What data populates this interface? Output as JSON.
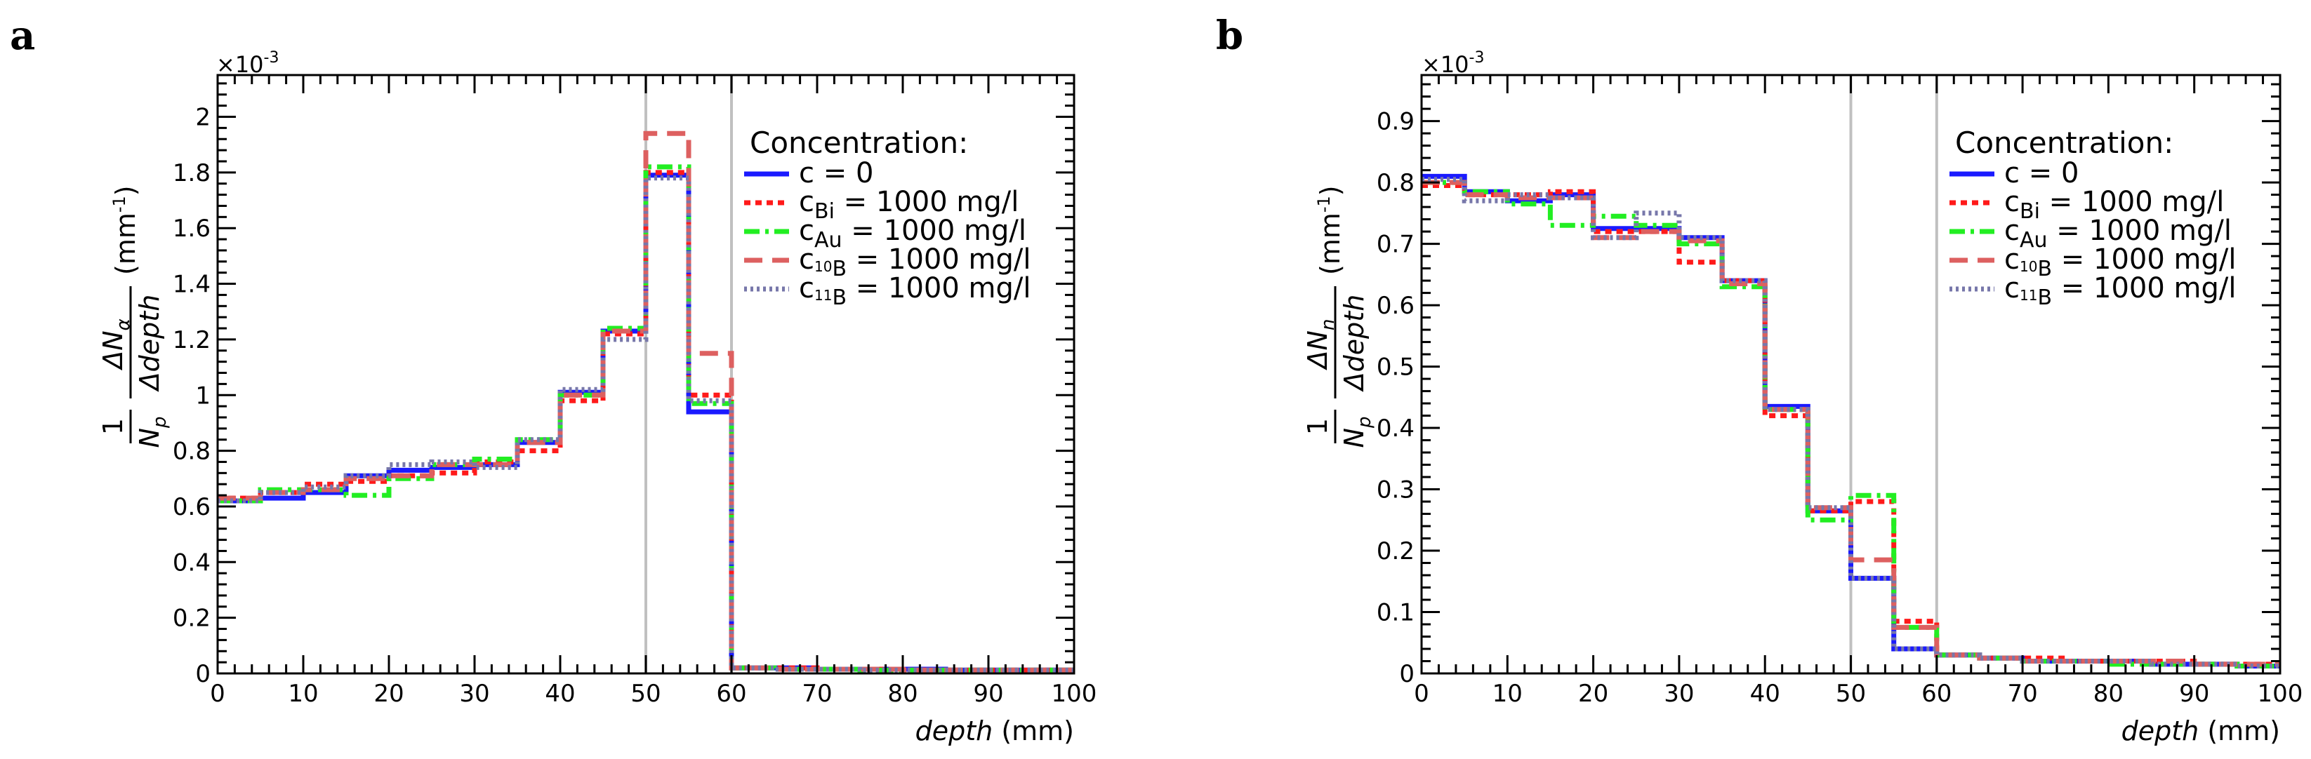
{
  "panels": [
    {
      "letter": "a",
      "ylabel_numerator": "ΔN",
      "ylabel_num_sub": "α",
      "ylabel_denominator": "Δdepth",
      "ylabel_unit": "(mm",
      "ylabel_unit_sup": "-1",
      "ylabel_unit_close": ")"
    },
    {
      "letter": "b",
      "ylabel_numerator": "ΔN",
      "ylabel_num_sub": "n",
      "ylabel_denominator": "Δdepth",
      "ylabel_unit": "(mm",
      "ylabel_unit_sup": "-1",
      "ylabel_unit_close": ")"
    }
  ],
  "legend_title": "Concentration:",
  "legend_items": [
    {
      "main": "c = 0",
      "sub": "",
      "sub_sup": "",
      "sub_after": "",
      "rest": "",
      "color": "#1a1aff",
      "dash": "solid"
    },
    {
      "main": "c",
      "sub": "Bi",
      "sub_sup": "",
      "sub_after": "",
      "rest": " = 1000 mg/l",
      "color": "#ff1a1a",
      "dash": "dotted"
    },
    {
      "main": "c",
      "sub": "Au",
      "sub_sup": "",
      "sub_after": "",
      "rest": " = 1000 mg/l",
      "color": "#22ee22",
      "dash": "dashdot"
    },
    {
      "main": "c",
      "sub": "",
      "sub_sup": "10",
      "sub_after": "B",
      "rest": " = 1000 mg/l",
      "color": "#dd6060",
      "dash": "dashed"
    },
    {
      "main": "c",
      "sub": "",
      "sub_sup": "11",
      "sub_after": "B",
      "rest": " = 1000 mg/l",
      "color": "#7777aa",
      "dash": "finedot"
    }
  ],
  "ylabel_prefix_num": "1",
  "ylabel_prefix_den": "N",
  "ylabel_prefix_sub": "p",
  "xlabel_italic": "depth",
  "xlabel_unit": " (mm)",
  "multiplier": "×10",
  "multiplier_exp": "-3",
  "chart_data": [
    {
      "type": "line",
      "step": true,
      "x_edges": [
        0,
        5,
        10,
        15,
        20,
        25,
        30,
        35,
        40,
        45,
        50,
        55,
        60,
        65,
        70,
        75,
        80,
        85,
        90,
        95,
        100
      ],
      "xlim": [
        0,
        100
      ],
      "ylim": [
        0,
        2.15
      ],
      "y_scale": 0.001,
      "xticks": [
        0,
        10,
        20,
        30,
        40,
        50,
        60,
        70,
        80,
        90,
        100
      ],
      "yticks": [
        0,
        0.2,
        0.4,
        0.6,
        0.8,
        1,
        1.2,
        1.4,
        1.6,
        1.8,
        2
      ],
      "ytick_labels": [
        "0",
        "0.2",
        "0.4",
        "0.6",
        "0.8",
        "1",
        "1.2",
        "1.4",
        "1.6",
        "1.8",
        "2"
      ],
      "vlines": [
        50,
        60
      ],
      "series": [
        {
          "name": "c = 0",
          "values": [
            0.62,
            0.63,
            0.65,
            0.71,
            0.73,
            0.74,
            0.75,
            0.83,
            1.01,
            1.23,
            1.79,
            0.94,
            0.02,
            0.02,
            0.015,
            0.015,
            0.015,
            0.012,
            0.012,
            0.012
          ]
        },
        {
          "name": "c_Bi = 1000 mg/l",
          "values": [
            0.63,
            0.65,
            0.68,
            0.69,
            0.71,
            0.72,
            0.76,
            0.8,
            0.98,
            1.22,
            1.8,
            1.0,
            0.02,
            0.02,
            0.015,
            0.015,
            0.012,
            0.012,
            0.012,
            0.012
          ]
        },
        {
          "name": "c_Au = 1000 mg/l",
          "values": [
            0.62,
            0.66,
            0.66,
            0.64,
            0.7,
            0.75,
            0.77,
            0.84,
            1.0,
            1.24,
            1.82,
            0.97,
            0.02,
            0.015,
            0.015,
            0.012,
            0.012,
            0.012,
            0.012,
            0.012
          ]
        },
        {
          "name": "c_10B = 1000 mg/l",
          "values": [
            0.63,
            0.65,
            0.66,
            0.7,
            0.71,
            0.75,
            0.75,
            0.83,
            1.0,
            1.23,
            1.94,
            1.15,
            0.02,
            0.015,
            0.015,
            0.015,
            0.012,
            0.012,
            0.012,
            0.012
          ]
        },
        {
          "name": "c_11B = 1000 mg/l",
          "values": [
            0.62,
            0.65,
            0.67,
            0.71,
            0.75,
            0.76,
            0.74,
            0.84,
            1.02,
            1.2,
            1.78,
            0.98,
            0.02,
            0.015,
            0.015,
            0.012,
            0.012,
            0.012,
            0.012,
            0.012
          ]
        }
      ]
    },
    {
      "type": "line",
      "step": true,
      "x_edges": [
        0,
        5,
        10,
        15,
        20,
        25,
        30,
        35,
        40,
        45,
        50,
        55,
        60,
        65,
        70,
        75,
        80,
        85,
        90,
        95,
        100
      ],
      "xlim": [
        0,
        100
      ],
      "ylim": [
        0,
        0.975
      ],
      "y_scale": 0.001,
      "xticks": [
        0,
        10,
        20,
        30,
        40,
        50,
        60,
        70,
        80,
        90,
        100
      ],
      "yticks": [
        0,
        0.1,
        0.2,
        0.3,
        0.4,
        0.5,
        0.6,
        0.7,
        0.8,
        0.9
      ],
      "ytick_labels": [
        "0",
        "0.1",
        "0.2",
        "0.3",
        "0.4",
        "0.5",
        "0.6",
        "0.7",
        "0.8",
        "0.9"
      ],
      "vlines": [
        50,
        60
      ],
      "series": [
        {
          "name": "c = 0",
          "values": [
            0.81,
            0.785,
            0.77,
            0.78,
            0.725,
            0.725,
            0.71,
            0.64,
            0.435,
            0.265,
            0.155,
            0.04,
            0.03,
            0.025,
            0.02,
            0.02,
            0.02,
            0.015,
            0.015,
            0.012
          ]
        },
        {
          "name": "c_Bi = 1000 mg/l",
          "values": [
            0.795,
            0.78,
            0.78,
            0.785,
            0.72,
            0.72,
            0.67,
            0.64,
            0.42,
            0.265,
            0.28,
            0.085,
            0.03,
            0.025,
            0.025,
            0.02,
            0.02,
            0.02,
            0.015,
            0.015
          ]
        },
        {
          "name": "c_Au = 1000 mg/l",
          "values": [
            0.8,
            0.785,
            0.765,
            0.73,
            0.745,
            0.73,
            0.7,
            0.63,
            0.43,
            0.25,
            0.29,
            0.075,
            0.03,
            0.025,
            0.02,
            0.02,
            0.015,
            0.015,
            0.015,
            0.012
          ]
        },
        {
          "name": "c_10B = 1000 mg/l",
          "values": [
            0.8,
            0.78,
            0.775,
            0.775,
            0.71,
            0.72,
            0.705,
            0.635,
            0.43,
            0.27,
            0.185,
            0.075,
            0.03,
            0.025,
            0.02,
            0.02,
            0.02,
            0.02,
            0.015,
            0.015
          ]
        },
        {
          "name": "c_11B = 1000 mg/l",
          "values": [
            0.805,
            0.77,
            0.78,
            0.775,
            0.71,
            0.75,
            0.71,
            0.64,
            0.43,
            0.27,
            0.155,
            0.04,
            0.03,
            0.025,
            0.02,
            0.02,
            0.02,
            0.015,
            0.015,
            0.012
          ]
        }
      ]
    }
  ]
}
